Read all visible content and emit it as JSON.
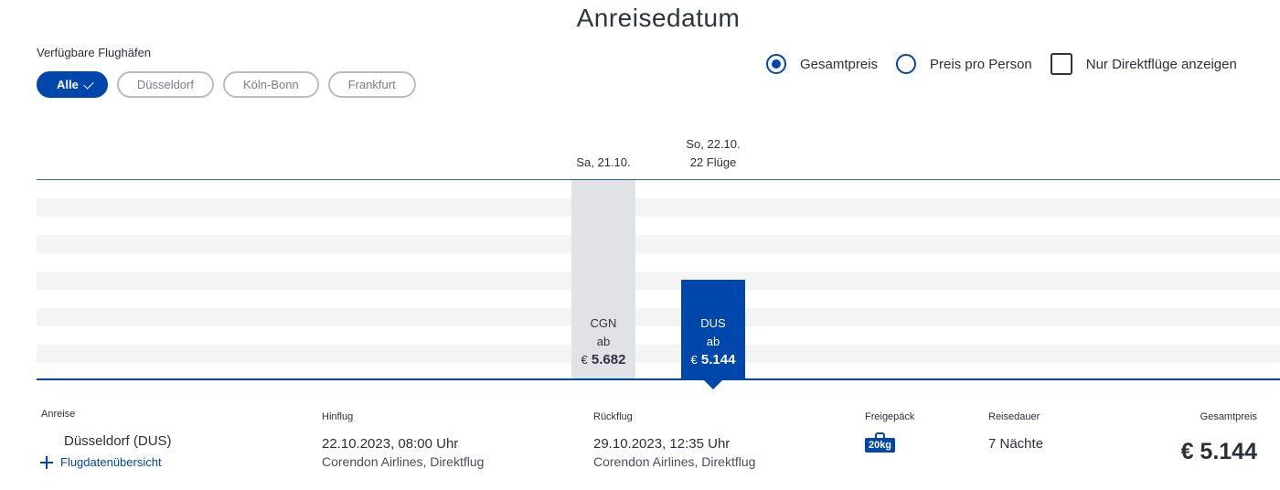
{
  "page": {
    "title": "Anreisedatum"
  },
  "airports": {
    "label": "Verfügbare Flughäfen",
    "chips": [
      {
        "label": "Alle",
        "active": true
      },
      {
        "label": "Düsseldorf",
        "active": false
      },
      {
        "label": "Köln-Bonn",
        "active": false
      },
      {
        "label": "Frankfurt",
        "active": false
      }
    ]
  },
  "options": {
    "total_price": {
      "label": "Gesamtpreis",
      "checked": true
    },
    "price_per_person": {
      "label": "Preis pro Person",
      "checked": false
    },
    "direct_only": {
      "label": "Nur Direktflüge anzeigen",
      "checked": false
    }
  },
  "chart": {
    "days": [
      {
        "date": "Sa, 21.10.",
        "flights": "",
        "airport": "CGN",
        "from": "ab",
        "currency": "€",
        "price": "5.682",
        "selected": false
      },
      {
        "date": "So, 22.10.",
        "flights": "22 Flüge",
        "airport": "DUS",
        "from": "ab",
        "currency": "€",
        "price": "5.144",
        "selected": true
      }
    ],
    "colors": {
      "accent": "#0047ab",
      "unselected": "#e1e2e6"
    }
  },
  "details": {
    "arrival": {
      "label": "Anreise",
      "airport": "Düsseldorf  (DUS)",
      "link": "Flugdatenübersicht"
    },
    "outbound": {
      "label": "Hinflug",
      "datetime": "22.10.2023, 08:00 Uhr",
      "carrier": "Corendon Airlines, Direktflug"
    },
    "return": {
      "label": "Rückflug",
      "datetime": "29.10.2023, 12:35 Uhr",
      "carrier": "Corendon Airlines, Direktflug"
    },
    "baggage": {
      "label": "Freigepäck",
      "value": "20kg"
    },
    "duration": {
      "label": "Reisedauer",
      "value": "7 Nächte"
    },
    "total": {
      "label": "Gesamtpreis",
      "value": "€ 5.144"
    }
  }
}
